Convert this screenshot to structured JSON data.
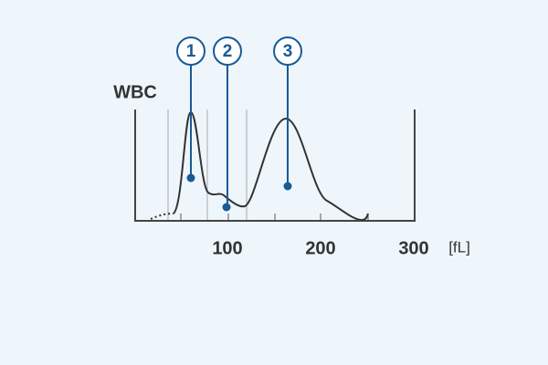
{
  "histogram": {
    "title": "WBC",
    "x_labels": [
      "100",
      "200",
      "300"
    ],
    "unit": "[fL]",
    "markers": [
      "1",
      "2",
      "3"
    ]
  }
}
